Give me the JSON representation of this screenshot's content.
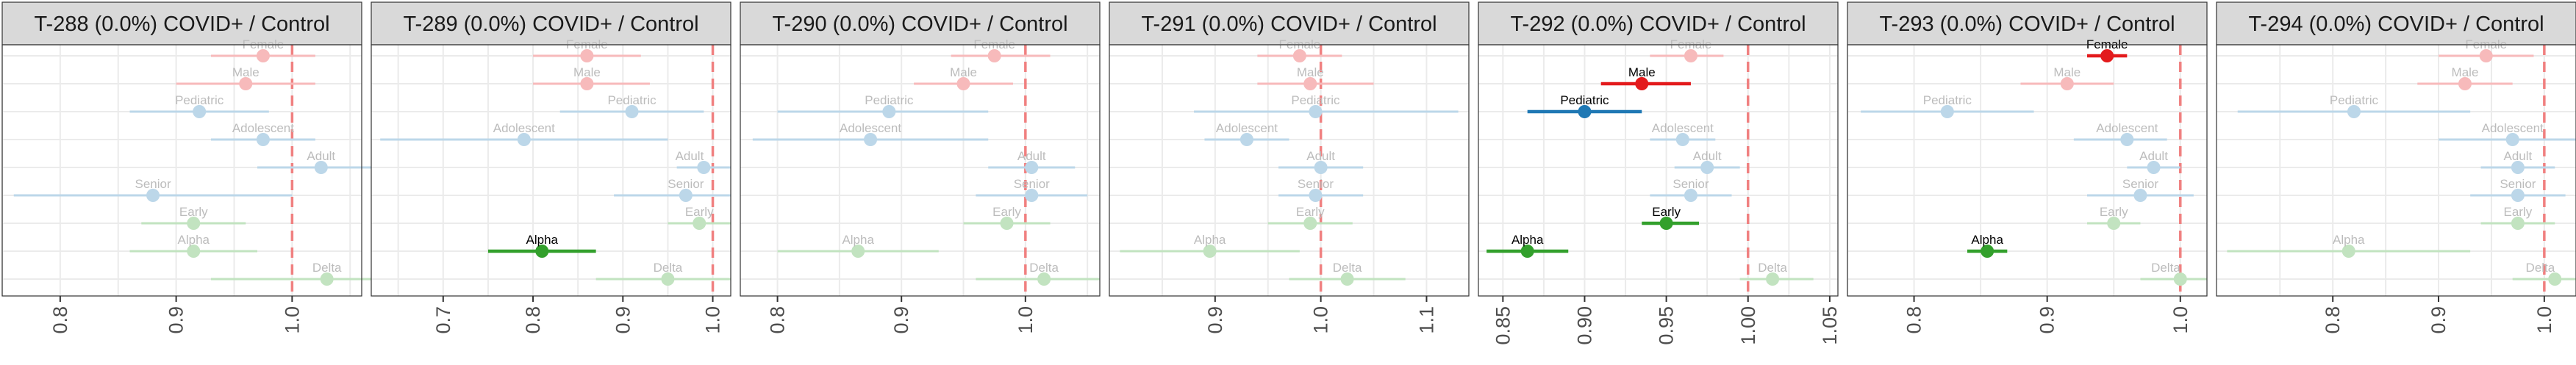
{
  "colors": {
    "Sex": "#e31a1c",
    "AgeGroup": "#1f78b4",
    "Variant": "#33a02c",
    "reference_line": "#f08080",
    "strip_bg": "#d9d9d9",
    "grid": "#ebebeb"
  },
  "row_order": [
    "Female",
    "Male",
    "Pediatric",
    "Adolescent",
    "Adult",
    "Senior",
    "Early",
    "Alpha",
    "Delta"
  ],
  "row_groups": {
    "Female": "Sex",
    "Male": "Sex",
    "Pediatric": "AgeGroup",
    "Adolescent": "AgeGroup",
    "Adult": "AgeGroup",
    "Senior": "AgeGroup",
    "Early": "Variant",
    "Alpha": "Variant",
    "Delta": "Variant"
  },
  "chart_data": [
    {
      "type": "scatter",
      "title": "T-288 (0.0%) COVID+ / Control",
      "xlim": [
        0.75,
        1.06
      ],
      "xticks": [
        0.8,
        0.9,
        1.0
      ],
      "xtick_labels": [
        "0.8",
        "0.9",
        "1.0"
      ],
      "reference_x": 1.0,
      "points": [
        {
          "label": "Female",
          "est": 0.975,
          "lo": 0.93,
          "hi": 1.02,
          "significant": false
        },
        {
          "label": "Male",
          "est": 0.96,
          "lo": 0.9,
          "hi": 1.02,
          "significant": false
        },
        {
          "label": "Pediatric",
          "est": 0.92,
          "lo": 0.86,
          "hi": 0.98,
          "significant": false
        },
        {
          "label": "Adolescent",
          "est": 0.975,
          "lo": 0.93,
          "hi": 1.02,
          "significant": false
        },
        {
          "label": "Adult",
          "est": 1.025,
          "lo": 0.97,
          "hi": 1.07,
          "significant": false
        },
        {
          "label": "Senior",
          "est": 0.88,
          "lo": 0.76,
          "hi": 1.0,
          "significant": false
        },
        {
          "label": "Early",
          "est": 0.915,
          "lo": 0.87,
          "hi": 0.96,
          "significant": false
        },
        {
          "label": "Alpha",
          "est": 0.915,
          "lo": 0.86,
          "hi": 0.97,
          "significant": false
        },
        {
          "label": "Delta",
          "est": 1.03,
          "lo": 0.93,
          "hi": 1.11,
          "significant": false
        }
      ]
    },
    {
      "type": "scatter",
      "title": "T-289 (0.0%) COVID+ / Control",
      "xlim": [
        0.62,
        1.02
      ],
      "xticks": [
        0.7,
        0.8,
        0.9,
        1.0
      ],
      "xtick_labels": [
        "0.7",
        "0.8",
        "0.9",
        "1.0"
      ],
      "reference_x": 1.0,
      "points": [
        {
          "label": "Female",
          "est": 0.86,
          "lo": 0.8,
          "hi": 0.92,
          "significant": false
        },
        {
          "label": "Male",
          "est": 0.86,
          "lo": 0.8,
          "hi": 0.93,
          "significant": false
        },
        {
          "label": "Pediatric",
          "est": 0.91,
          "lo": 0.83,
          "hi": 0.99,
          "significant": false
        },
        {
          "label": "Adolescent",
          "est": 0.79,
          "lo": 0.63,
          "hi": 0.95,
          "significant": false
        },
        {
          "label": "Adult",
          "est": 0.99,
          "lo": 0.96,
          "hi": 1.02,
          "significant": false
        },
        {
          "label": "Senior",
          "est": 0.97,
          "lo": 0.89,
          "hi": 1.02,
          "significant": false
        },
        {
          "label": "Early",
          "est": 0.985,
          "lo": 0.95,
          "hi": 1.02,
          "significant": false
        },
        {
          "label": "Alpha",
          "est": 0.81,
          "lo": 0.75,
          "hi": 0.87,
          "significant": true
        },
        {
          "label": "Delta",
          "est": 0.95,
          "lo": 0.87,
          "hi": 1.02,
          "significant": false
        }
      ]
    },
    {
      "type": "scatter",
      "title": "T-290 (0.0%) COVID+ / Control",
      "xlim": [
        0.77,
        1.06
      ],
      "xticks": [
        0.8,
        0.9,
        1.0
      ],
      "xtick_labels": [
        "0.8",
        "0.9",
        "1.0"
      ],
      "reference_x": 1.0,
      "points": [
        {
          "label": "Female",
          "est": 0.975,
          "lo": 0.94,
          "hi": 1.02,
          "significant": false
        },
        {
          "label": "Male",
          "est": 0.95,
          "lo": 0.91,
          "hi": 0.99,
          "significant": false
        },
        {
          "label": "Pediatric",
          "est": 0.89,
          "lo": 0.8,
          "hi": 0.97,
          "significant": false
        },
        {
          "label": "Adolescent",
          "est": 0.875,
          "lo": 0.78,
          "hi": 0.97,
          "significant": false
        },
        {
          "label": "Adult",
          "est": 1.005,
          "lo": 0.97,
          "hi": 1.04,
          "significant": false
        },
        {
          "label": "Senior",
          "est": 1.005,
          "lo": 0.96,
          "hi": 1.05,
          "significant": false
        },
        {
          "label": "Early",
          "est": 0.985,
          "lo": 0.95,
          "hi": 1.02,
          "significant": false
        },
        {
          "label": "Alpha",
          "est": 0.865,
          "lo": 0.8,
          "hi": 0.93,
          "significant": false
        },
        {
          "label": "Delta",
          "est": 1.015,
          "lo": 0.96,
          "hi": 1.06,
          "significant": false
        }
      ]
    },
    {
      "type": "scatter",
      "title": "T-291 (0.0%) COVID+ / Control",
      "xlim": [
        0.8,
        1.14
      ],
      "xticks": [
        0.9,
        1.0,
        1.1
      ],
      "xtick_labels": [
        "0.9",
        "1.0",
        "1.1"
      ],
      "reference_x": 1.0,
      "points": [
        {
          "label": "Female",
          "est": 0.98,
          "lo": 0.94,
          "hi": 1.02,
          "significant": false
        },
        {
          "label": "Male",
          "est": 0.99,
          "lo": 0.94,
          "hi": 1.05,
          "significant": false
        },
        {
          "label": "Pediatric",
          "est": 0.995,
          "lo": 0.88,
          "hi": 1.13,
          "significant": false
        },
        {
          "label": "Adolescent",
          "est": 0.93,
          "lo": 0.89,
          "hi": 0.97,
          "significant": false
        },
        {
          "label": "Adult",
          "est": 1.0,
          "lo": 0.96,
          "hi": 1.04,
          "significant": false
        },
        {
          "label": "Senior",
          "est": 0.995,
          "lo": 0.96,
          "hi": 1.04,
          "significant": false
        },
        {
          "label": "Early",
          "est": 0.99,
          "lo": 0.95,
          "hi": 1.03,
          "significant": false
        },
        {
          "label": "Alpha",
          "est": 0.895,
          "lo": 0.81,
          "hi": 0.98,
          "significant": false
        },
        {
          "label": "Delta",
          "est": 1.025,
          "lo": 0.97,
          "hi": 1.08,
          "significant": false
        }
      ]
    },
    {
      "type": "scatter",
      "title": "T-292 (0.0%) COVID+ / Control",
      "xlim": [
        0.835,
        1.055
      ],
      "xticks": [
        0.85,
        0.9,
        0.95,
        1.0,
        1.05
      ],
      "xtick_labels": [
        "0.85",
        "0.90",
        "0.95",
        "1.00",
        "1.05"
      ],
      "reference_x": 1.0,
      "points": [
        {
          "label": "Female",
          "est": 0.965,
          "lo": 0.94,
          "hi": 0.985,
          "significant": false
        },
        {
          "label": "Male",
          "est": 0.935,
          "lo": 0.91,
          "hi": 0.965,
          "significant": true
        },
        {
          "label": "Pediatric",
          "est": 0.9,
          "lo": 0.865,
          "hi": 0.935,
          "significant": true
        },
        {
          "label": "Adolescent",
          "est": 0.96,
          "lo": 0.94,
          "hi": 0.98,
          "significant": false
        },
        {
          "label": "Adult",
          "est": 0.975,
          "lo": 0.955,
          "hi": 0.995,
          "significant": false
        },
        {
          "label": "Senior",
          "est": 0.965,
          "lo": 0.94,
          "hi": 0.99,
          "significant": false
        },
        {
          "label": "Early",
          "est": 0.95,
          "lo": 0.935,
          "hi": 0.97,
          "significant": true
        },
        {
          "label": "Alpha",
          "est": 0.865,
          "lo": 0.84,
          "hi": 0.89,
          "significant": true
        },
        {
          "label": "Delta",
          "est": 1.015,
          "lo": 0.995,
          "hi": 1.04,
          "significant": false
        }
      ]
    },
    {
      "type": "scatter",
      "title": "T-293 (0.0%) COVID+ / Control",
      "xlim": [
        0.75,
        1.02
      ],
      "xticks": [
        0.8,
        0.9,
        1.0
      ],
      "xtick_labels": [
        "0.8",
        "0.9",
        "1.0"
      ],
      "reference_x": 1.0,
      "points": [
        {
          "label": "Female",
          "est": 0.945,
          "lo": 0.93,
          "hi": 0.96,
          "significant": true
        },
        {
          "label": "Male",
          "est": 0.915,
          "lo": 0.88,
          "hi": 0.95,
          "significant": false
        },
        {
          "label": "Pediatric",
          "est": 0.825,
          "lo": 0.76,
          "hi": 0.89,
          "significant": false
        },
        {
          "label": "Adolescent",
          "est": 0.96,
          "lo": 0.92,
          "hi": 0.99,
          "significant": false
        },
        {
          "label": "Adult",
          "est": 0.98,
          "lo": 0.96,
          "hi": 1.0,
          "significant": false
        },
        {
          "label": "Senior",
          "est": 0.97,
          "lo": 0.93,
          "hi": 1.01,
          "significant": false
        },
        {
          "label": "Early",
          "est": 0.95,
          "lo": 0.93,
          "hi": 0.97,
          "significant": false
        },
        {
          "label": "Alpha",
          "est": 0.855,
          "lo": 0.84,
          "hi": 0.87,
          "significant": true
        },
        {
          "label": "Delta",
          "est": 1.0,
          "lo": 0.97,
          "hi": 1.02,
          "significant": false
        }
      ]
    },
    {
      "type": "scatter",
      "title": "T-294 (0.0%) COVID+ / Control",
      "xlim": [
        0.69,
        1.03
      ],
      "xticks": [
        0.8,
        0.9,
        1.0
      ],
      "xtick_labels": [
        "0.8",
        "0.9",
        "1.0"
      ],
      "reference_x": 1.0,
      "points": [
        {
          "label": "Female",
          "est": 0.945,
          "lo": 0.9,
          "hi": 0.99,
          "significant": false
        },
        {
          "label": "Male",
          "est": 0.925,
          "lo": 0.88,
          "hi": 0.97,
          "significant": false
        },
        {
          "label": "Pediatric",
          "est": 0.82,
          "lo": 0.71,
          "hi": 0.93,
          "significant": false
        },
        {
          "label": "Adolescent",
          "est": 0.97,
          "lo": 0.9,
          "hi": 1.03,
          "significant": false
        },
        {
          "label": "Adult",
          "est": 0.975,
          "lo": 0.94,
          "hi": 1.01,
          "significant": false
        },
        {
          "label": "Senior",
          "est": 0.975,
          "lo": 0.93,
          "hi": 1.02,
          "significant": false
        },
        {
          "label": "Early",
          "est": 0.975,
          "lo": 0.94,
          "hi": 1.01,
          "significant": false
        },
        {
          "label": "Alpha",
          "est": 0.815,
          "lo": 0.7,
          "hi": 0.93,
          "significant": false
        },
        {
          "label": "Delta",
          "est": 1.01,
          "lo": 0.97,
          "hi": 1.03,
          "significant": false
        }
      ]
    }
  ]
}
